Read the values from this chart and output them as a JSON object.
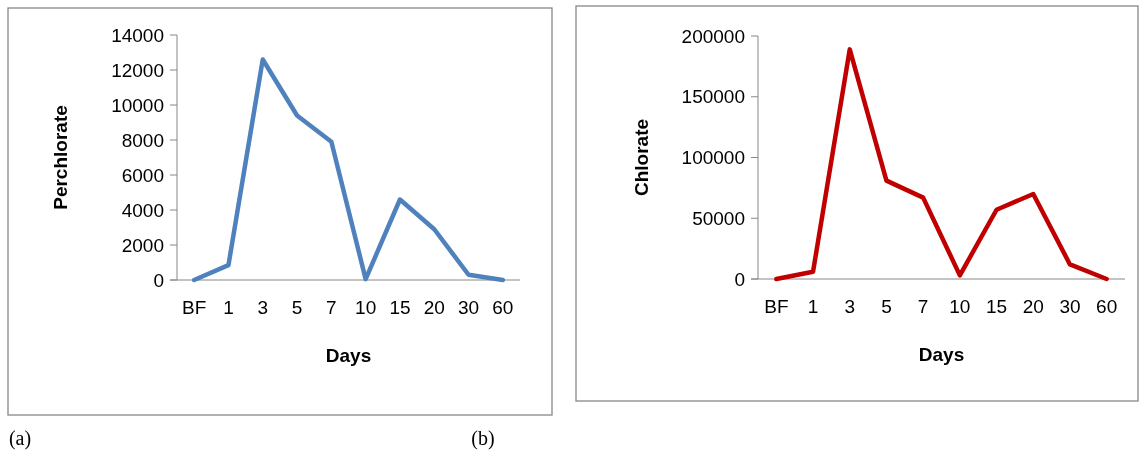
{
  "chart_data": [
    {
      "type": "line",
      "xlabel": "Days",
      "ylabel": "Perchlorate",
      "categories": [
        "BF",
        "1",
        "3",
        "5",
        "7",
        "10",
        "15",
        "20",
        "30",
        "60"
      ],
      "series": [
        {
          "color": "#4f81bd",
          "values": [
            0,
            850,
            12600,
            9400,
            7900,
            50,
            4600,
            2900,
            300,
            0
          ]
        }
      ],
      "ylim": [
        0,
        14000
      ],
      "yticks": [
        0,
        2000,
        4000,
        6000,
        8000,
        10000,
        12000,
        14000
      ],
      "line_style": "solid",
      "annotations": [
        "(a)"
      ]
    },
    {
      "type": "line",
      "xlabel": "Days",
      "ylabel": "Chlorate",
      "categories": [
        "BF",
        "1",
        "3",
        "5",
        "7",
        "10",
        "15",
        "20",
        "30",
        "60"
      ],
      "series": [
        {
          "color": "#c00000",
          "values": [
            0,
            6000,
            189000,
            81000,
            67000,
            3000,
            57000,
            70000,
            12000,
            0
          ]
        }
      ],
      "ylim": [
        0,
        200000
      ],
      "yticks": [
        0,
        50000,
        100000,
        150000,
        200000
      ],
      "line_style": "solid",
      "annotations": [
        "(b)"
      ]
    }
  ]
}
